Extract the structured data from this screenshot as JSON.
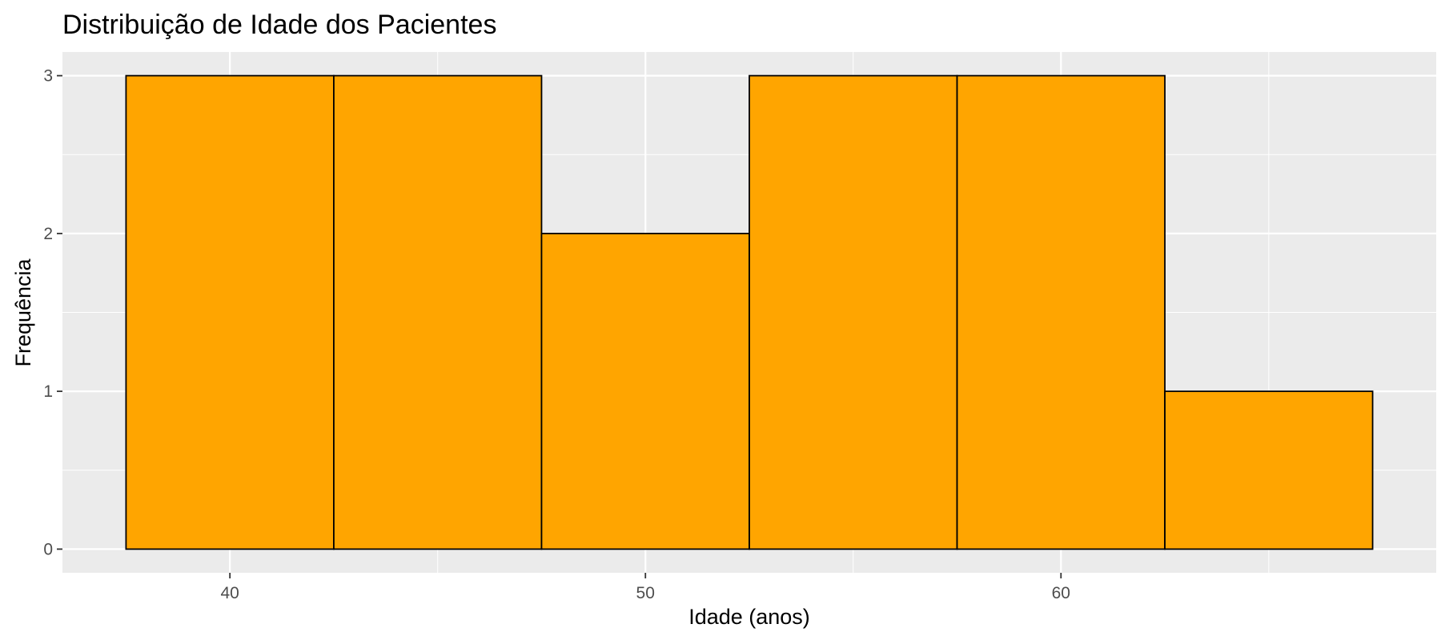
{
  "chart_data": {
    "type": "bar",
    "subtype": "histogram",
    "title": "Distribuição de Idade dos Pacientes",
    "xlabel": "Idade (anos)",
    "ylabel": "Frequência",
    "bins": [
      {
        "start": 37.5,
        "end": 42.5,
        "count": 3
      },
      {
        "start": 42.5,
        "end": 47.5,
        "count": 3
      },
      {
        "start": 47.5,
        "end": 52.5,
        "count": 2
      },
      {
        "start": 52.5,
        "end": 57.5,
        "count": 3
      },
      {
        "start": 57.5,
        "end": 62.5,
        "count": 3
      },
      {
        "start": 62.5,
        "end": 67.5,
        "count": 1
      }
    ],
    "xlim": [
      35.97,
      69.03
    ],
    "ylim": [
      -0.15,
      3.15
    ],
    "x_ticks": [
      40,
      50,
      60
    ],
    "x_minor_ticks": [
      45,
      55,
      65
    ],
    "y_ticks": [
      0,
      1,
      2,
      3
    ],
    "grid": true,
    "legend": "none",
    "colors": {
      "bar_fill": "#FFA500",
      "bar_outline": "#000000",
      "panel_background": "#EBEBEB",
      "grid_line": "#FFFFFF",
      "tick_label": "#4D4D4D",
      "text": "#000000"
    }
  }
}
